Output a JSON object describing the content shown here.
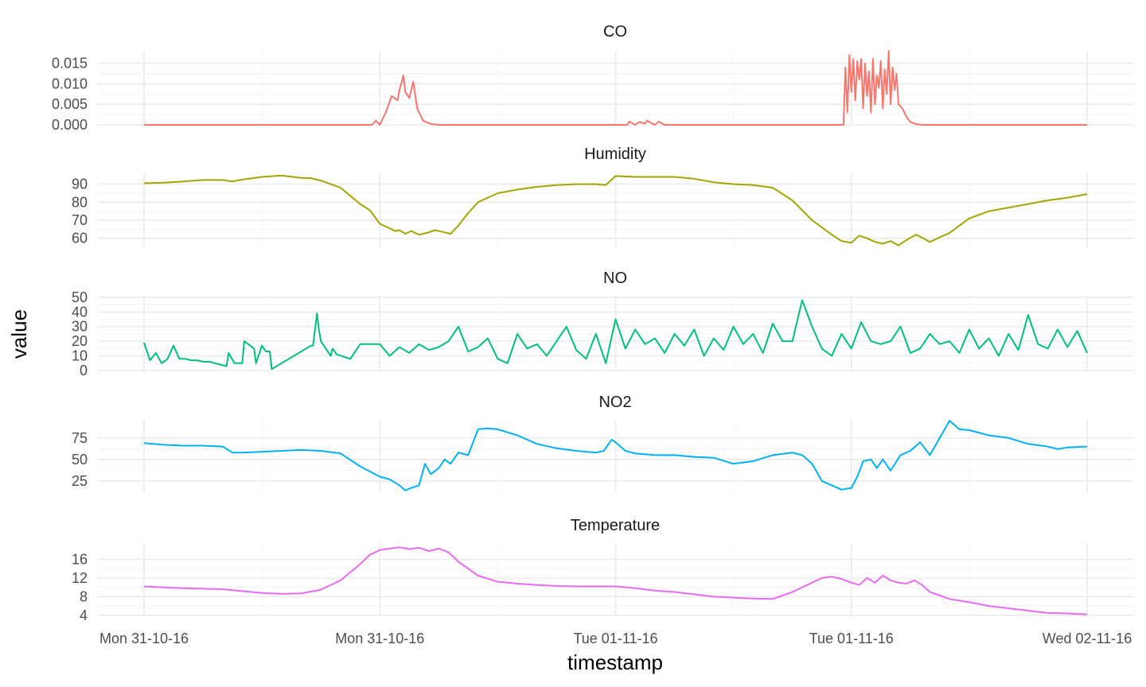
{
  "chart_data": {
    "type": "line",
    "layout": "faceted",
    "xlabel": "timestamp",
    "ylabel": "value",
    "x_ticks": [
      "Mon 31-10-16",
      "Mon 31-10-16",
      "Tue 01-11-16",
      "Tue 01-11-16",
      "Wed 02-11-16"
    ],
    "x_range": [
      0,
      48
    ],
    "grid": true,
    "legend": "none",
    "panels": [
      {
        "title": "CO",
        "color": "#F8766D",
        "ylim": [
          0,
          0.018
        ],
        "yticks": [
          0,
          0.005,
          0.01,
          0.015
        ],
        "ytick_labels": [
          "0.000",
          "0.005",
          "0.010",
          "0.015"
        ],
        "x": [
          0,
          11.6,
          11.8,
          12.0,
          12.3,
          12.6,
          12.9,
          13.0,
          13.2,
          13.3,
          13.5,
          13.7,
          13.9,
          14.2,
          14.6,
          15.0,
          24.6,
          24.7,
          25.0,
          25.2,
          25.5,
          25.6,
          26.0,
          26.2,
          26.5,
          26.6,
          35.6,
          35.7,
          35.8,
          35.9,
          36.0,
          36.1,
          36.2,
          36.3,
          36.4,
          36.5,
          36.6,
          36.7,
          36.8,
          36.9,
          37.0,
          37.1,
          37.2,
          37.3,
          37.4,
          37.5,
          37.6,
          37.7,
          37.8,
          37.9,
          38.0,
          38.1,
          38.2,
          38.3,
          38.4,
          38.6,
          38.8,
          39.0,
          39.3,
          39.6,
          40.0,
          48
        ],
        "y": [
          0,
          0,
          0.001,
          0,
          0.003,
          0.007,
          0.006,
          0.0085,
          0.012,
          0.008,
          0.0065,
          0.0105,
          0.004,
          0.001,
          0.0002,
          0,
          0,
          0.0008,
          0,
          0.0007,
          0.0003,
          0.001,
          0,
          0.0008,
          0,
          0,
          0,
          0.014,
          0.003,
          0.017,
          0.008,
          0.016,
          0.006,
          0.0155,
          0.011,
          0.016,
          0.004,
          0.015,
          0.007,
          0.013,
          0.003,
          0.016,
          0.005,
          0.012,
          0.009,
          0.0155,
          0.004,
          0.0135,
          0.0075,
          0.018,
          0.005,
          0.014,
          0.0085,
          0.0125,
          0.005,
          0.004,
          0.002,
          0.0007,
          0.0002,
          0,
          0,
          0
        ]
      },
      {
        "title": "Humidity",
        "color": "#A3A500",
        "ylim": [
          55,
          96
        ],
        "yticks": [
          60,
          70,
          80,
          90
        ],
        "ytick_labels": [
          "60",
          "70",
          "80",
          "90"
        ],
        "x": [
          0,
          1,
          2,
          3,
          4,
          4.5,
          5,
          6,
          7,
          8,
          8.5,
          9,
          10,
          11,
          11.5,
          12,
          12.5,
          12.8,
          13,
          13.3,
          13.6,
          14,
          14.4,
          14.8,
          15.2,
          15.6,
          16,
          16.5,
          17,
          18,
          19,
          20,
          21,
          22,
          23,
          23.5,
          24,
          25,
          26,
          27,
          28,
          29,
          30,
          31,
          32,
          33,
          34,
          35,
          35.5,
          36,
          36.4,
          36.8,
          37.2,
          37.6,
          38,
          38.4,
          38.8,
          39.3,
          40,
          41,
          42,
          43,
          44,
          45,
          46,
          47,
          48
        ],
        "y": [
          90.5,
          90.8,
          91.5,
          92.3,
          92.3,
          91.5,
          92.5,
          94.0,
          94.8,
          93.5,
          93.3,
          92.0,
          88.0,
          79.0,
          75.5,
          68.0,
          65.5,
          64.0,
          64.5,
          62.5,
          64.0,
          62.0,
          63.0,
          64.5,
          63.5,
          62.5,
          67.0,
          74.0,
          80.0,
          85.0,
          87.0,
          88.5,
          89.5,
          90.0,
          90.0,
          89.5,
          94.5,
          94.0,
          94.0,
          94.0,
          93.0,
          91.0,
          90.0,
          89.5,
          88.0,
          81.0,
          70.0,
          62.0,
          58.5,
          57.5,
          61.5,
          60.0,
          58.0,
          57.0,
          58.5,
          56.0,
          59.0,
          62.0,
          58.0,
          63.0,
          71.0,
          75.0,
          77.0,
          79.0,
          81.0,
          82.5,
          84.5
        ]
      },
      {
        "title": "NO",
        "color": "#00BF7D",
        "ylim": [
          0,
          51
        ],
        "yticks": [
          0,
          10,
          20,
          30,
          40,
          50
        ],
        "ytick_labels": [
          "0",
          "10",
          "20",
          "30",
          "40",
          "50"
        ],
        "x": [
          0,
          0.3,
          0.6,
          0.9,
          1.2,
          1.5,
          1.8,
          2.1,
          2.4,
          2.7,
          3.0,
          3.3,
          4.2,
          4.3,
          4.6,
          5.0,
          5.1,
          5.6,
          5.7,
          6.0,
          6.2,
          6.4,
          6.5,
          8.5,
          8.6,
          8.8,
          8.9,
          9.0,
          9.5,
          9.6,
          9.8,
          10.5,
          11.0,
          11.5,
          12.0,
          12.5,
          13.0,
          13.5,
          14.0,
          14.5,
          15.0,
          15.5,
          16.0,
          16.5,
          17.0,
          17.5,
          18.0,
          18.5,
          19.0,
          19.5,
          20.0,
          20.5,
          21.0,
          21.5,
          22.0,
          22.5,
          23.0,
          23.5,
          24.0,
          24.5,
          25.0,
          25.5,
          26.0,
          26.5,
          27.0,
          27.5,
          28.0,
          28.5,
          29.0,
          29.5,
          30.0,
          30.5,
          31.0,
          31.5,
          32.0,
          32.5,
          33.0,
          33.5,
          34.0,
          34.5,
          35.0,
          35.5,
          36.0,
          36.5,
          37.0,
          37.5,
          38.0,
          38.5,
          39.0,
          39.5,
          40.0,
          40.5,
          41.0,
          41.5,
          42.0,
          42.5,
          43.0,
          43.5,
          44.0,
          44.5,
          45.0,
          45.5,
          46.0,
          46.5,
          47.0,
          47.5,
          48.0
        ],
        "y": [
          19,
          7,
          12,
          5,
          8,
          17,
          8,
          8,
          7,
          7,
          6,
          6,
          3,
          12,
          5,
          5,
          20,
          15,
          5,
          17,
          13,
          13,
          1,
          17,
          17,
          39,
          28,
          20,
          10,
          15,
          11,
          8,
          18,
          18,
          18,
          10,
          16,
          12,
          18,
          14,
          16,
          20,
          30,
          13,
          16,
          22,
          8,
          5,
          25,
          15,
          18,
          10,
          20,
          30,
          14,
          8,
          25,
          5,
          35,
          15,
          28,
          18,
          22,
          12,
          25,
          17,
          28,
          10,
          22,
          14,
          30,
          18,
          25,
          12,
          32,
          20,
          20,
          48,
          30,
          15,
          10,
          25,
          15,
          33,
          20,
          18,
          20,
          30,
          12,
          15,
          25,
          18,
          20,
          12,
          28,
          15,
          22,
          10,
          25,
          14,
          38,
          18,
          15,
          28,
          16,
          27,
          12
        ]
      },
      {
        "title": "NO2",
        "color": "#00B0F6",
        "ylim": [
          12,
          96
        ],
        "yticks": [
          25,
          50,
          75
        ],
        "ytick_labels": [
          "25",
          "50",
          "75"
        ],
        "x": [
          0,
          1,
          2,
          3,
          4,
          4.5,
          5,
          6,
          7,
          8,
          9,
          10,
          11,
          12,
          12.5,
          13,
          13.3,
          13.6,
          14,
          14.3,
          14.6,
          15,
          15.3,
          15.6,
          16,
          16.5,
          17,
          17.5,
          18,
          19,
          20,
          21,
          22,
          23,
          23.4,
          23.8,
          24,
          24.5,
          25,
          26,
          27,
          28,
          29,
          30,
          31,
          32,
          33,
          33.5,
          34,
          34.5,
          35,
          35.5,
          36,
          36.3,
          36.6,
          37,
          37.3,
          37.6,
          38,
          38.5,
          39,
          39.5,
          40,
          40.5,
          41,
          41.5,
          42,
          43,
          44,
          45,
          46,
          46.5,
          47,
          48
        ],
        "y": [
          69,
          67,
          66,
          66,
          65,
          58,
          58,
          59,
          60,
          61,
          60,
          57,
          42,
          30,
          27,
          20,
          14,
          17,
          20,
          45,
          33,
          40,
          50,
          45,
          58,
          55,
          85,
          86,
          85,
          78,
          68,
          63,
          60,
          58,
          60,
          73,
          70,
          60,
          57,
          55,
          55,
          53,
          52,
          45,
          48,
          55,
          58,
          55,
          45,
          25,
          20,
          15,
          17,
          30,
          48,
          50,
          40,
          50,
          37,
          55,
          60,
          70,
          55,
          75,
          95,
          85,
          84,
          78,
          75,
          68,
          65,
          62,
          64,
          65
        ]
      },
      {
        "title": "Temperature",
        "color": "#E76BF3",
        "ylim": [
          3.8,
          19.5
        ],
        "yticks": [
          4,
          8,
          12,
          16
        ],
        "ytick_labels": [
          "4",
          "8",
          "12",
          "16"
        ],
        "x": [
          0,
          1,
          2,
          3,
          4,
          5,
          6,
          7,
          8,
          9,
          10,
          11,
          11.5,
          12,
          12.5,
          13,
          13.5,
          14,
          14.5,
          15,
          15.5,
          16,
          17,
          18,
          19,
          20,
          21,
          22,
          23,
          24,
          25,
          26,
          27,
          28,
          29,
          30,
          31,
          32,
          33,
          34,
          34.5,
          35,
          35.5,
          36,
          36.4,
          36.8,
          37.2,
          37.6,
          38,
          38.4,
          38.8,
          39.2,
          39.6,
          40,
          41,
          42,
          43,
          44,
          45,
          46,
          47,
          48
        ],
        "y": [
          10.2,
          10,
          9.8,
          9.7,
          9.6,
          9.2,
          8.8,
          8.6,
          8.7,
          9.5,
          11.5,
          15,
          17,
          18,
          18.3,
          18.6,
          18.2,
          18.5,
          17.8,
          18.3,
          17.5,
          15.5,
          12.5,
          11.2,
          10.8,
          10.5,
          10.3,
          10.2,
          10.2,
          10.2,
          9.8,
          9.3,
          9.0,
          8.5,
          8.0,
          7.8,
          7.6,
          7.5,
          9.0,
          11.0,
          12.0,
          12.3,
          11.8,
          11.0,
          10.5,
          12.0,
          11.0,
          12.5,
          11.5,
          11.0,
          10.8,
          11.5,
          10.5,
          9.0,
          7.5,
          6.8,
          6.0,
          5.5,
          5.0,
          4.5,
          4.4,
          4.2
        ]
      }
    ]
  }
}
